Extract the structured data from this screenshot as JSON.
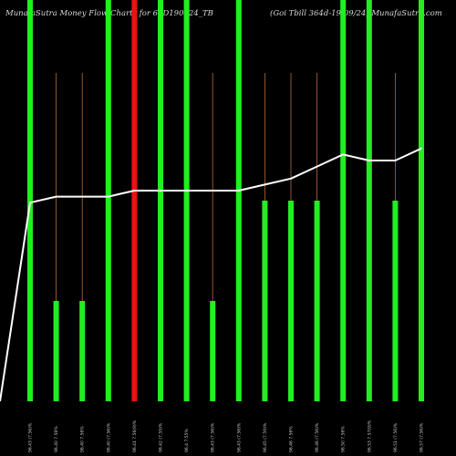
{
  "header": {
    "left": "MunafaSutra  Money Flow  Charts for 64D190924_TB",
    "right": "(Goi   Tbill 364d-19/09/24) MunafaSutra.com"
  },
  "colors": {
    "background": "#000000",
    "up_bar": "#22ee22",
    "down_bar": "#ee1111",
    "price_line": "#ffffff",
    "tick_line": "#b86a3a"
  },
  "chart_data": {
    "type": "bar",
    "title": "MunafaSutra  Money Flow  Charts for 64D190924_TB",
    "subtitle": "(Goi   Tbill 364d-19/09/24) MunafaSutra.com",
    "categories": [
      "96.43 (7.56)%",
      "96.40  7.56%",
      "96.40  7.56%",
      "96.40 (7.56)%",
      "96.41  7.56(9)%",
      "96.42 (7.55)%",
      "96.4  7.55%",
      "96.43 (7.56)%",
      "96.43 (7.56)%",
      "96.45 (7.59)%",
      "96.46  7.56%",
      "96.46 (7.56)%",
      "96.50  7.56%",
      "96.53  7.57(9)%",
      "96.51 (7.56)%",
      "96.57 (7.56)%"
    ],
    "series": [
      {
        "values": [
          100,
          25,
          25,
          100,
          100,
          100,
          100,
          25,
          100,
          50,
          50,
          50,
          100,
          100,
          50,
          100
        ],
        "direction": [
          "up",
          "up",
          "up",
          "up",
          "down",
          "up",
          "up",
          "up",
          "up",
          "up",
          "up",
          "up",
          "up",
          "up",
          "up",
          "up"
        ]
      },
      {
        "values": [
          96.43,
          96.44,
          96.44,
          96.44,
          96.45,
          96.45,
          96.45,
          96.45,
          96.45,
          96.46,
          96.47,
          96.49,
          96.51,
          96.5,
          96.5,
          96.52
        ]
      }
    ],
    "price_start": 96.1,
    "price_ylim": [
      96.1,
      96.6
    ],
    "ylim": [
      0,
      100
    ],
    "grid": false,
    "legend": "none"
  }
}
